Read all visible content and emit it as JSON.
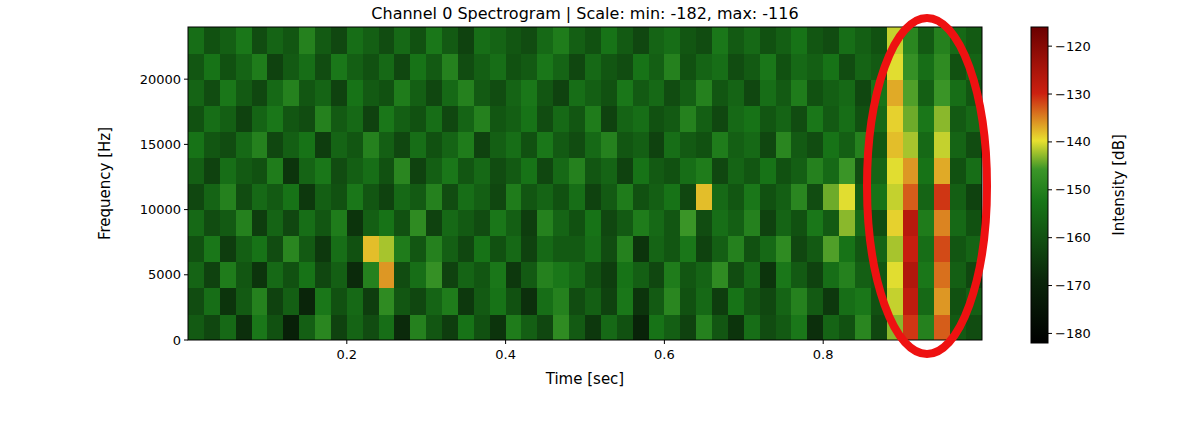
{
  "chart_data": {
    "type": "heatmap",
    "title": "Channel 0 Spectrogram | Scale: min: -182, max: -116",
    "x_label": "Time [sec]",
    "y_label": "Frequency [Hz]",
    "xlim": [
      0,
      1
    ],
    "xticks": [
      0.2,
      0.4,
      0.6,
      0.8
    ],
    "ylim": [
      0,
      24000
    ],
    "yticks": [
      0,
      5000,
      10000,
      15000,
      20000
    ],
    "x": [
      0.01,
      0.03,
      0.05,
      0.07,
      0.09,
      0.11,
      0.13,
      0.15,
      0.17,
      0.19,
      0.21,
      0.23,
      0.25,
      0.27,
      0.29,
      0.31,
      0.33,
      0.35,
      0.37,
      0.39,
      0.41,
      0.43,
      0.45,
      0.47,
      0.49,
      0.51,
      0.53,
      0.55,
      0.57,
      0.59,
      0.61,
      0.63,
      0.65,
      0.67,
      0.69,
      0.71,
      0.73,
      0.75,
      0.77,
      0.79,
      0.81,
      0.83,
      0.85,
      0.87,
      0.89,
      0.91,
      0.93,
      0.95,
      0.97,
      0.99
    ],
    "y": [
      1000,
      3000,
      5000,
      7000,
      9000,
      11000,
      13000,
      15000,
      17000,
      19000,
      21000,
      23000
    ],
    "values": [
      [
        -158,
        -162,
        -155,
        -167,
        -152,
        -160,
        -171,
        -157,
        -149,
        -163,
        -156,
        -161,
        -154,
        -168,
        -150,
        -159,
        -164,
        -153,
        -160,
        -166,
        -151,
        -157,
        -162,
        -148,
        -158,
        -165,
        -155,
        -160,
        -170,
        -153,
        -157,
        -163,
        -150,
        -159,
        -166,
        -154,
        -161,
        -158,
        -152,
        -167,
        -156,
        -160,
        -149,
        -162,
        -143,
        -131,
        -150,
        -133,
        -158,
        -161
      ],
      [
        -161,
        -154,
        -166,
        -158,
        -150,
        -163,
        -157,
        -169,
        -152,
        -160,
        -155,
        -164,
        -148,
        -159,
        -162,
        -156,
        -151,
        -165,
        -158,
        -153,
        -160,
        -167,
        -154,
        -150,
        -161,
        -157,
        -163,
        -152,
        -166,
        -158,
        -149,
        -160,
        -155,
        -164,
        -153,
        -159,
        -162,
        -156,
        -150,
        -158,
        -165,
        -154,
        -152,
        -160,
        -141,
        -128,
        -155,
        -136,
        -160,
        -157
      ],
      [
        -156,
        -163,
        -151,
        -159,
        -166,
        -155,
        -160,
        -153,
        -162,
        -157,
        -168,
        -150,
        -136,
        -161,
        -154,
        -147,
        -163,
        -156,
        -159,
        -152,
        -165,
        -158,
        -150,
        -152,
        -155,
        -160,
        -164,
        -153,
        -157,
        -162,
        -151,
        -159,
        -156,
        -148,
        -161,
        -155,
        -166,
        -152,
        -158,
        -163,
        -154,
        -150,
        -157,
        -159,
        -140,
        -126,
        -152,
        -134,
        -157,
        -162
      ],
      [
        -160,
        -152,
        -164,
        -157,
        -153,
        -161,
        -149,
        -158,
        -165,
        -154,
        -160,
        -138,
        -142,
        -151,
        -159,
        -150,
        -157,
        -162,
        -153,
        -160,
        -155,
        -163,
        -155,
        -158,
        -158,
        -154,
        -161,
        -150,
        -166,
        -156,
        -159,
        -152,
        -163,
        -157,
        -150,
        -160,
        -155,
        -148,
        -162,
        -158,
        -145,
        -153,
        -159,
        -156,
        -142,
        -129,
        -154,
        -132,
        -159,
        -156
      ],
      [
        -155,
        -161,
        -158,
        -150,
        -164,
        -156,
        -162,
        -154,
        -159,
        -151,
        -166,
        -157,
        -153,
        -160,
        -148,
        -163,
        -155,
        -158,
        -161,
        -152,
        -157,
        -164,
        -150,
        -156,
        -160,
        -153,
        -162,
        -158,
        -151,
        -155,
        -159,
        -146,
        -161,
        -154,
        -157,
        -150,
        -163,
        -156,
        -160,
        -152,
        -158,
        -143,
        -155,
        -161,
        -139,
        -127,
        -151,
        -135,
        -155,
        -160
      ],
      [
        -162,
        -156,
        -150,
        -161,
        -155,
        -158,
        -153,
        -165,
        -157,
        -160,
        -152,
        -159,
        -163,
        -155,
        -158,
        -150,
        -161,
        -154,
        -157,
        -162,
        -151,
        -159,
        -156,
        -160,
        -154,
        -163,
        -158,
        -151,
        -160,
        -157,
        -153,
        -162,
        -138,
        -155,
        -159,
        -152,
        -160,
        -157,
        -149,
        -161,
        -144,
        -140,
        -158,
        -153,
        -141,
        -133,
        -156,
        -131,
        -157,
        -163
      ],
      [
        -157,
        -163,
        -154,
        -158,
        -160,
        -151,
        -166,
        -156,
        -152,
        -161,
        -157,
        -154,
        -160,
        -149,
        -163,
        -157,
        -152,
        -159,
        -155,
        -161,
        -158,
        -153,
        -162,
        -155,
        -150,
        -159,
        -156,
        -163,
        -153,
        -158,
        -160,
        -154,
        -151,
        -162,
        -156,
        -159,
        -153,
        -160,
        -157,
        -150,
        -155,
        -146,
        -161,
        -156,
        -140,
        -136,
        -153,
        -137,
        -160,
        -154
      ],
      [
        -153,
        -159,
        -161,
        -155,
        -150,
        -162,
        -157,
        -153,
        -164,
        -156,
        -159,
        -150,
        -157,
        -162,
        -154,
        -160,
        -156,
        -151,
        -163,
        -157,
        -154,
        -160,
        -152,
        -158,
        -161,
        -155,
        -150,
        -159,
        -157,
        -163,
        -154,
        -158,
        -160,
        -151,
        -157,
        -155,
        -162,
        -149,
        -158,
        -161,
        -153,
        -157,
        -150,
        -159,
        -138,
        -142,
        -155,
        -141,
        -156,
        -161
      ],
      [
        -160,
        -154,
        -157,
        -163,
        -156,
        -152,
        -159,
        -161,
        -150,
        -158,
        -155,
        -163,
        -152,
        -157,
        -160,
        -154,
        -162,
        -156,
        -150,
        -159,
        -157,
        -153,
        -161,
        -155,
        -159,
        -151,
        -163,
        -156,
        -154,
        -160,
        -158,
        -150,
        -157,
        -162,
        -155,
        -153,
        -159,
        -156,
        -161,
        -152,
        -158,
        -154,
        -160,
        -155,
        -139,
        -144,
        -152,
        -143,
        -158,
        -155
      ],
      [
        -156,
        -161,
        -152,
        -158,
        -162,
        -155,
        -150,
        -159,
        -156,
        -163,
        -153,
        -158,
        -160,
        -151,
        -157,
        -162,
        -155,
        -150,
        -158,
        -161,
        -156,
        -152,
        -159,
        -163,
        -154,
        -157,
        -160,
        -152,
        -158,
        -155,
        -161,
        -157,
        -150,
        -159,
        -156,
        -162,
        -154,
        -158,
        -151,
        -160,
        -157,
        -155,
        -162,
        -153,
        -137,
        -145,
        -157,
        -146,
        -154,
        -159
      ],
      [
        -159,
        -153,
        -160,
        -156,
        -151,
        -163,
        -158,
        -154,
        -161,
        -152,
        -157,
        -160,
        -155,
        -162,
        -153,
        -158,
        -150,
        -161,
        -157,
        -154,
        -160,
        -158,
        -152,
        -156,
        -162,
        -155,
        -159,
        -161,
        -153,
        -157,
        -150,
        -160,
        -156,
        -154,
        -161,
        -158,
        -152,
        -160,
        -155,
        -157,
        -153,
        -161,
        -156,
        -158,
        -140,
        -147,
        -154,
        -148,
        -160,
        -156
      ],
      [
        -154,
        -160,
        -157,
        -152,
        -161,
        -156,
        -159,
        -150,
        -158,
        -162,
        -154,
        -157,
        -161,
        -155,
        -160,
        -152,
        -158,
        -163,
        -154,
        -156,
        -159,
        -161,
        -155,
        -151,
        -157,
        -160,
        -153,
        -158,
        -162,
        -156,
        -154,
        -159,
        -161,
        -152,
        -158,
        -155,
        -160,
        -157,
        -153,
        -159,
        -161,
        -154,
        -157,
        -160,
        -141,
        -149,
        -158,
        -150,
        -155,
        -158
      ]
    ],
    "colorbar": {
      "label": "Intensity [dB]",
      "range": [
        -182,
        -116
      ],
      "ticks": [
        {
          "value": -180,
          "label": "−180"
        },
        {
          "value": -170,
          "label": "−170"
        },
        {
          "value": -160,
          "label": "−160"
        },
        {
          "value": -150,
          "label": "−150"
        },
        {
          "value": -140,
          "label": "−140"
        },
        {
          "value": -130,
          "label": "−130"
        },
        {
          "value": -120,
          "label": "−120"
        }
      ]
    }
  }
}
